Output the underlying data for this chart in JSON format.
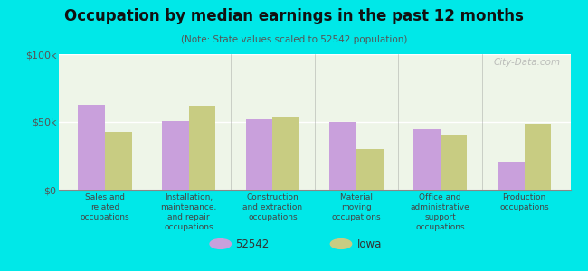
{
  "title": "Occupation by median earnings in the past 12 months",
  "subtitle": "(Note: State values scaled to 52542 population)",
  "background_color": "#00e8e8",
  "plot_bg_color": "#eef5e8",
  "categories": [
    "Sales and\nrelated\noccupations",
    "Installation,\nmaintenance,\nand repair\noccupations",
    "Construction\nand extraction\noccupations",
    "Material\nmoving\noccupations",
    "Office and\nadministrative\nsupport\noccupations",
    "Production\noccupations"
  ],
  "values_52542": [
    63000,
    51000,
    52000,
    50000,
    45000,
    21000
  ],
  "values_iowa": [
    43000,
    62000,
    54000,
    30000,
    40000,
    49000
  ],
  "color_52542": "#c9a0dc",
  "color_iowa": "#c8cc82",
  "ylim": [
    0,
    100000
  ],
  "yticks": [
    0,
    50000,
    100000
  ],
  "ytick_labels": [
    "$0",
    "$50k",
    "$100k"
  ],
  "legend_labels": [
    "52542",
    "Iowa"
  ],
  "watermark": "City-Data.com"
}
